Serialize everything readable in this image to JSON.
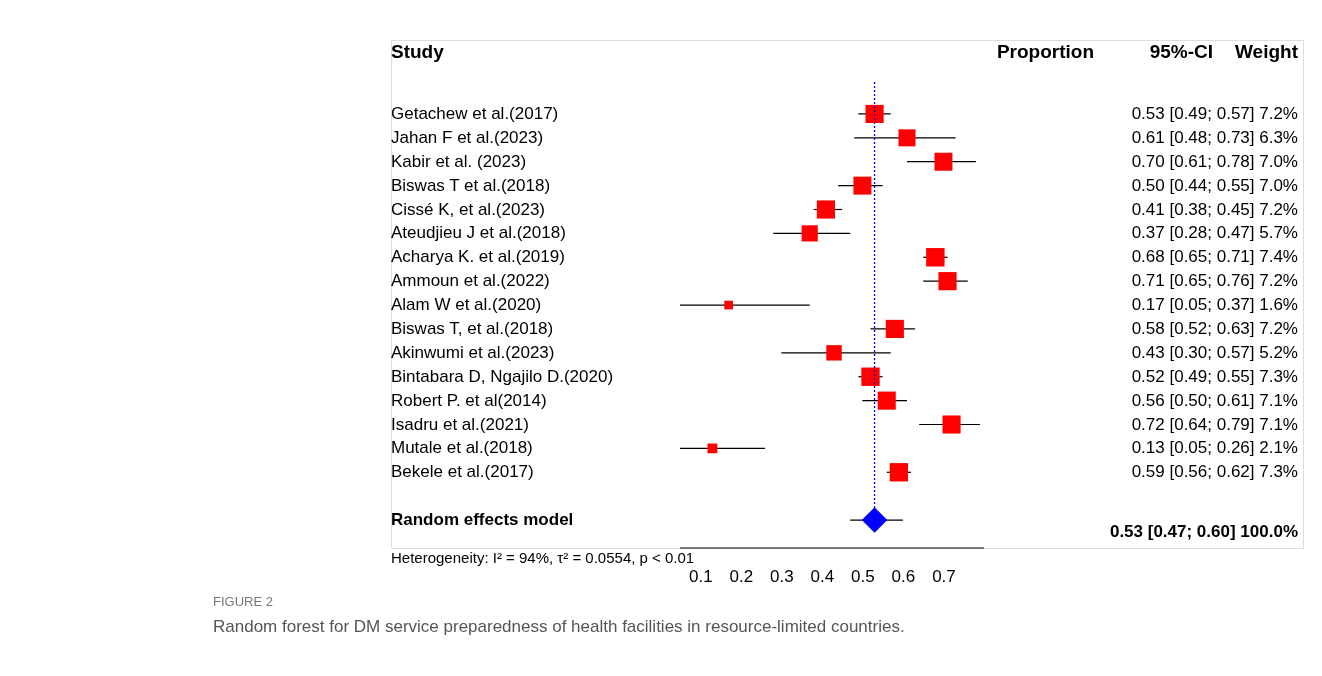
{
  "chart_data": {
    "type": "bubble",
    "orientation": "horizontal",
    "title": "FIGURE 2",
    "subtitle": "Random forest for DM service preparedness of health facilities in resource-limited countries.",
    "ylabel": "Study",
    "categories": [
      "Getachew et al.(2017)",
      "Jahan F et al.(2023)",
      "Kabir et al. (2023)",
      "Biswas T et al.(2018)",
      "Cissé K, et al.(2023)",
      "Ateudjieu J et al.(2018)",
      "Acharya K. et al.(2019)",
      "Ammoun et al.(2022)",
      "Alam W et al.(2020)",
      "Biswas T, et al.(2018)",
      "Akinwumi et al.(2023)",
      "Bintabara D, Ngajilo D.(2020)",
      "Robert P. et al(2014)",
      "Isadru et al.(2021)",
      "Mutale et al.(2018)",
      "Bekele et al.(2017)",
      null,
      "Random effects model"
    ],
    "series": [
      {
        "marker": "square",
        "color": "#ff0000",
        "values": [
          0.53,
          0.61,
          0.7,
          0.5,
          0.41,
          0.37,
          0.68,
          0.71,
          0.17,
          0.58,
          0.43,
          0.52,
          0.56,
          0.72,
          0.13,
          0.59,
          null,
          null
        ],
        "errors": [
          [
            0.49,
            0.57
          ],
          [
            0.48,
            0.73
          ],
          [
            0.61,
            0.78
          ],
          [
            0.44,
            0.55
          ],
          [
            0.38,
            0.45
          ],
          [
            0.28,
            0.47
          ],
          [
            0.65,
            0.71
          ],
          [
            0.65,
            0.76
          ],
          [
            0.05,
            0.37
          ],
          [
            0.52,
            0.63
          ],
          [
            0.3,
            0.57
          ],
          [
            0.49,
            0.55
          ],
          [
            0.5,
            0.61
          ],
          [
            0.64,
            0.79
          ],
          [
            0.05,
            0.26
          ],
          [
            0.56,
            0.62
          ],
          null,
          null
        ],
        "sizes": [
          0.97,
          0.85,
          0.95,
          0.95,
          0.97,
          0.77,
          1,
          0.97,
          0.22,
          0.97,
          0.7,
          0.99,
          0.96,
          0.96,
          0.28,
          0.99,
          null,
          null
        ],
        "value_labels": [
          "0.53  [0.49; 0.57]    7.2%",
          "0.61  [0.48; 0.73]    6.3%",
          "0.70  [0.61; 0.78]    7.0%",
          "0.50  [0.44; 0.55]    7.0%",
          "0.41  [0.38; 0.45]    7.2%",
          "0.37  [0.28; 0.47]    5.7%",
          "0.68  [0.65; 0.71]    7.4%",
          "0.71  [0.65; 0.76]    7.2%",
          "0.17  [0.05; 0.37]    1.6%",
          "0.58  [0.52; 0.63]    7.2%",
          "0.43  [0.30; 0.57]    5.2%",
          "0.52  [0.49; 0.55]    7.3%",
          "0.56  [0.50; 0.61]    7.1%",
          "0.72  [0.64; 0.79]    7.1%",
          "0.13  [0.05; 0.26]    2.1%",
          "0.59  [0.56; 0.62]    7.3%",
          null,
          null
        ]
      },
      {
        "type": "scatter",
        "marker": "diamond",
        "color": "#0000ff",
        "values": [
          null,
          null,
          null,
          null,
          null,
          null,
          null,
          null,
          null,
          null,
          null,
          null,
          null,
          null,
          null,
          null,
          null,
          0.53
        ],
        "errors": [
          null,
          null,
          null,
          null,
          null,
          null,
          null,
          null,
          null,
          null,
          null,
          null,
          null,
          null,
          null,
          null,
          null,
          [
            0.47,
            0.6
          ]
        ],
        "line_style": "solid"
      }
    ],
    "xlim": [
      0.05,
      0.8
    ],
    "xticks": [
      0.1,
      0.2,
      0.3,
      0.4,
      0.5,
      0.6,
      0.7
    ],
    "grid": false,
    "ref_lines": [
      {
        "axis": "x",
        "value": 0.53,
        "color": "#0000cc",
        "line_style": "dotted"
      }
    ],
    "annotations": [
      "Proportion",
      "95%-CI",
      "Weight",
      "Heterogeneity: I² = 94%, τ² = 0.0554, p < 0.01",
      "0.53  [0.47; 0.60]  100.0%"
    ]
  }
}
